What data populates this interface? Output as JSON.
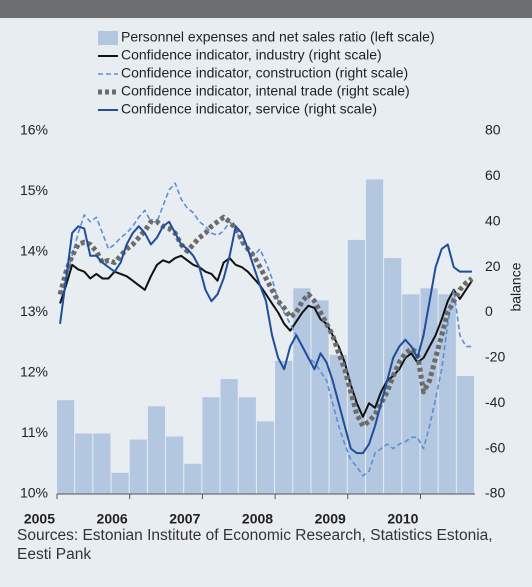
{
  "chart_data": {
    "type": "combo",
    "source": "Sources: Estonian Institute of Economic Research, Statistics Estonia, Eesti Pank",
    "y2label": "balance",
    "xlim": [
      2005,
      2010.75
    ],
    "xticks": [
      2005,
      2006,
      2007,
      2008,
      2009,
      2010
    ],
    "ylim": [
      10,
      16
    ],
    "yticks": [
      {
        "value": 10,
        "label": "10%"
      },
      {
        "value": 11,
        "label": "11%"
      },
      {
        "value": 12,
        "label": "12%"
      },
      {
        "value": 13,
        "label": "13%"
      },
      {
        "value": 14,
        "label": "14%"
      },
      {
        "value": 15,
        "label": "15%"
      },
      {
        "value": 16,
        "label": "16%"
      }
    ],
    "y2lim": [
      -80,
      80
    ],
    "y2ticks": [
      -80,
      -60,
      -40,
      -20,
      0,
      20,
      40,
      60,
      80
    ],
    "x": [
      2005.042,
      2005.125,
      2005.208,
      2005.292,
      2005.375,
      2005.458,
      2005.542,
      2005.625,
      2005.708,
      2005.792,
      2005.875,
      2005.958,
      2006.042,
      2006.125,
      2006.208,
      2006.292,
      2006.375,
      2006.458,
      2006.542,
      2006.625,
      2006.708,
      2006.792,
      2006.875,
      2006.958,
      2007.042,
      2007.125,
      2007.208,
      2007.292,
      2007.375,
      2007.458,
      2007.542,
      2007.625,
      2007.708,
      2007.792,
      2007.875,
      2007.958,
      2008.042,
      2008.125,
      2008.208,
      2008.292,
      2008.375,
      2008.458,
      2008.542,
      2008.625,
      2008.708,
      2008.792,
      2008.875,
      2008.958,
      2009.042,
      2009.125,
      2009.208,
      2009.292,
      2009.375,
      2009.458,
      2009.542,
      2009.625,
      2009.708,
      2009.792,
      2009.875,
      2009.958,
      2010.042,
      2010.125,
      2010.208,
      2010.292,
      2010.375,
      2010.458,
      2010.542,
      2010.625,
      2010.708
    ],
    "series": [
      {
        "name": "Personnel expenses and net sales ratio (left scale)",
        "type": "bar",
        "color": "#b4c7e0",
        "x": [
          2005,
          2005.25,
          2005.5,
          2005.75,
          2006,
          2006.25,
          2006.5,
          2006.75,
          2007,
          2007.25,
          2007.5,
          2007.75,
          2008,
          2008.25,
          2008.5,
          2008.75,
          2009,
          2009.25,
          2009.5,
          2009.75,
          2010,
          2010.25,
          2010.5
        ],
        "values": [
          11.55,
          11.0,
          11.0,
          10.35,
          10.9,
          11.45,
          10.95,
          10.5,
          11.6,
          11.9,
          11.6,
          11.2,
          12.2,
          13.4,
          13.2,
          12.3,
          14.2,
          15.2,
          13.9,
          13.3,
          13.4,
          13.3,
          11.95
        ]
      },
      {
        "name": "Confidence indicator, industry (right scale)",
        "type": "line",
        "axis": "y2",
        "color": "#111111",
        "dash": "solid",
        "width": 2,
        "values": [
          4,
          12,
          21,
          19,
          18,
          15,
          17,
          15,
          15,
          18,
          17,
          16,
          14,
          12,
          10,
          16,
          21,
          23,
          22,
          24,
          25,
          23,
          21,
          20,
          18,
          17,
          14,
          22,
          24,
          21,
          20,
          18,
          15,
          12,
          8,
          4,
          0,
          -5,
          -8,
          -4,
          0,
          3,
          2,
          -3,
          -5,
          -10,
          -15,
          -22,
          -32,
          -40,
          -46,
          -40,
          -42,
          -35,
          -30,
          -28,
          -25,
          -20,
          -18,
          -22,
          -20,
          -15,
          -10,
          -3,
          5,
          10,
          6,
          10,
          14
        ]
      },
      {
        "name": "Confidence indicator, construction (right scale)",
        "type": "line",
        "axis": "y2",
        "color": "#5b8fd6",
        "dash": "dashed",
        "width": 1.6,
        "values": [
          8,
          15,
          25,
          35,
          43,
          40,
          42,
          35,
          28,
          30,
          33,
          35,
          38,
          42,
          45,
          40,
          40,
          47,
          54,
          57,
          50,
          46,
          44,
          40,
          38,
          35,
          34,
          36,
          40,
          37,
          30,
          28,
          25,
          28,
          22,
          15,
          5,
          0,
          -5,
          -10,
          -15,
          -20,
          -22,
          -26,
          -30,
          -40,
          -50,
          -58,
          -65,
          -68,
          -72,
          -70,
          -62,
          -60,
          -58,
          -60,
          -58,
          -57,
          -55,
          -55,
          -60,
          -50,
          -38,
          -25,
          -5,
          10,
          -10,
          -15,
          -15
        ]
      },
      {
        "name": "Confidence indicator, intenal trade (right scale)",
        "type": "line",
        "axis": "y2",
        "color": "#6b6b6b",
        "dash": "dotted",
        "width": 5,
        "values": [
          8,
          18,
          25,
          30,
          31,
          30,
          27,
          22,
          23,
          22,
          25,
          28,
          30,
          33,
          36,
          40,
          40,
          38,
          37,
          35,
          30,
          27,
          30,
          33,
          35,
          38,
          40,
          42,
          40,
          37,
          32,
          28,
          25,
          20,
          15,
          10,
          5,
          2,
          -2,
          0,
          5,
          8,
          5,
          0,
          -5,
          -10,
          -18,
          -25,
          -35,
          -45,
          -50,
          -48,
          -45,
          -40,
          -35,
          -28,
          -22,
          -18,
          -16,
          -18,
          -35,
          -30,
          -20,
          -10,
          0,
          5,
          10,
          13,
          15
        ]
      },
      {
        "name": "Confidence indicator, service (right scale)",
        "type": "line",
        "axis": "y2",
        "color": "#1f4e9a",
        "dash": "solid",
        "width": 2,
        "values": [
          -5,
          15,
          35,
          38,
          37,
          25,
          25,
          22,
          20,
          18,
          22,
          30,
          35,
          38,
          35,
          30,
          33,
          38,
          40,
          35,
          30,
          28,
          25,
          20,
          10,
          5,
          8,
          15,
          25,
          38,
          35,
          28,
          20,
          12,
          5,
          -10,
          -20,
          -25,
          -15,
          -10,
          -15,
          -20,
          -25,
          -18,
          -22,
          -30,
          -40,
          -50,
          -60,
          -62,
          -62,
          -58,
          -50,
          -40,
          -30,
          -20,
          -15,
          -12,
          -15,
          -20,
          -10,
          5,
          20,
          28,
          30,
          20,
          18,
          18,
          18
        ]
      }
    ]
  }
}
